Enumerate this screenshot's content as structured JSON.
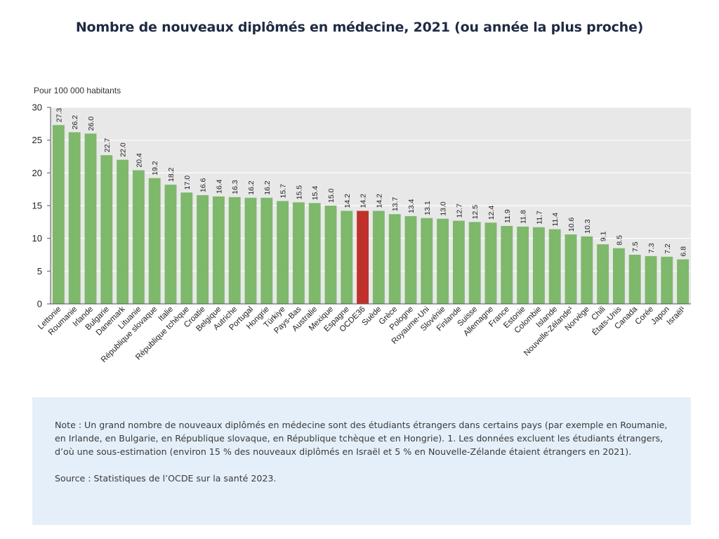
{
  "title": "Nombre de nouveaux diplômés en médecine, 2021 (ou année la  plus proche)",
  "note": "Note : Un grand nombre de nouveaux diplômés en médecine sont des étudiants étrangers dans certains pays (par exemple en Roumanie, en Irlande, en Bulgarie, en République slovaque, en République tchèque et en Hongrie). 1. Les données excluent les étudiants étrangers, d’où une sous-estimation (environ 15 % des nouveaux diplômés en Israël et 5 % en Nouvelle-Zélande étaient étrangers en 2021).",
  "source": "Source : Statistiques de l’OCDE sur la santé 2023.",
  "chart_data": {
    "type": "bar",
    "ylabel": "Pour 100 000 habitants",
    "ylim": [
      0,
      30
    ],
    "yticks": [
      0,
      5,
      10,
      15,
      20,
      25,
      30
    ],
    "grid": true,
    "colors": {
      "bar": "#7db86b",
      "highlight": "#c0312b",
      "plot_bg": "#e8e8e8",
      "grid": "#ffffff"
    },
    "highlight": "OCDE36",
    "categories": [
      "Lettonie",
      "Roumanie",
      "Irlande",
      "Bulgarie",
      "Danemark",
      "Lituanie",
      "République slovaque",
      "Italie",
      "République tchèque",
      "Croatie",
      "Belgique",
      "Autriche",
      "Portugal",
      "Hongrie",
      "Türkiye",
      "Pays-Bas",
      "Australie",
      "Mexique",
      "Espagne",
      "OCDE36",
      "Suède",
      "Grèce",
      "Pologne",
      "Royaume-Uni",
      "Slovénie",
      "Finlande",
      "Suisse",
      "Allemagne",
      "France",
      "Estonie",
      "Colombie",
      "Islande",
      "Nouvelle-Zélande¹",
      "Norvège",
      "Chili",
      "États-Unis",
      "Canada",
      "Corée",
      "Japon",
      "Israël¹"
    ],
    "values": [
      27.3,
      26.2,
      26.0,
      22.7,
      22.0,
      20.4,
      19.2,
      18.2,
      17.0,
      16.6,
      16.4,
      16.3,
      16.2,
      16.2,
      15.7,
      15.5,
      15.4,
      15.0,
      14.2,
      14.2,
      14.2,
      13.7,
      13.4,
      13.1,
      13.0,
      12.7,
      12.5,
      12.4,
      11.9,
      11.8,
      11.7,
      11.4,
      10.6,
      10.3,
      9.1,
      8.5,
      7.5,
      7.3,
      7.2,
      6.8
    ],
    "data_labels": [
      "27.3",
      "26.2",
      "26.0",
      "22.7",
      "22.0",
      "20.4",
      "19.2",
      "18.2",
      "17.0",
      "16.6",
      "16.4",
      "16.3",
      "16.2",
      "16.2",
      "15.7",
      "15.5",
      "15.4",
      "15.0",
      "14.2",
      "14.2",
      "14.2",
      "13.7",
      "13.4",
      "13.1",
      "13.0",
      "12.7",
      "12.5",
      "12.4",
      "11.9",
      "11.8",
      "11.7",
      "11.4",
      "10.6",
      "10.3",
      "9.1",
      "8.5",
      "7.5",
      "7.3",
      "7.2",
      "6.8"
    ]
  }
}
